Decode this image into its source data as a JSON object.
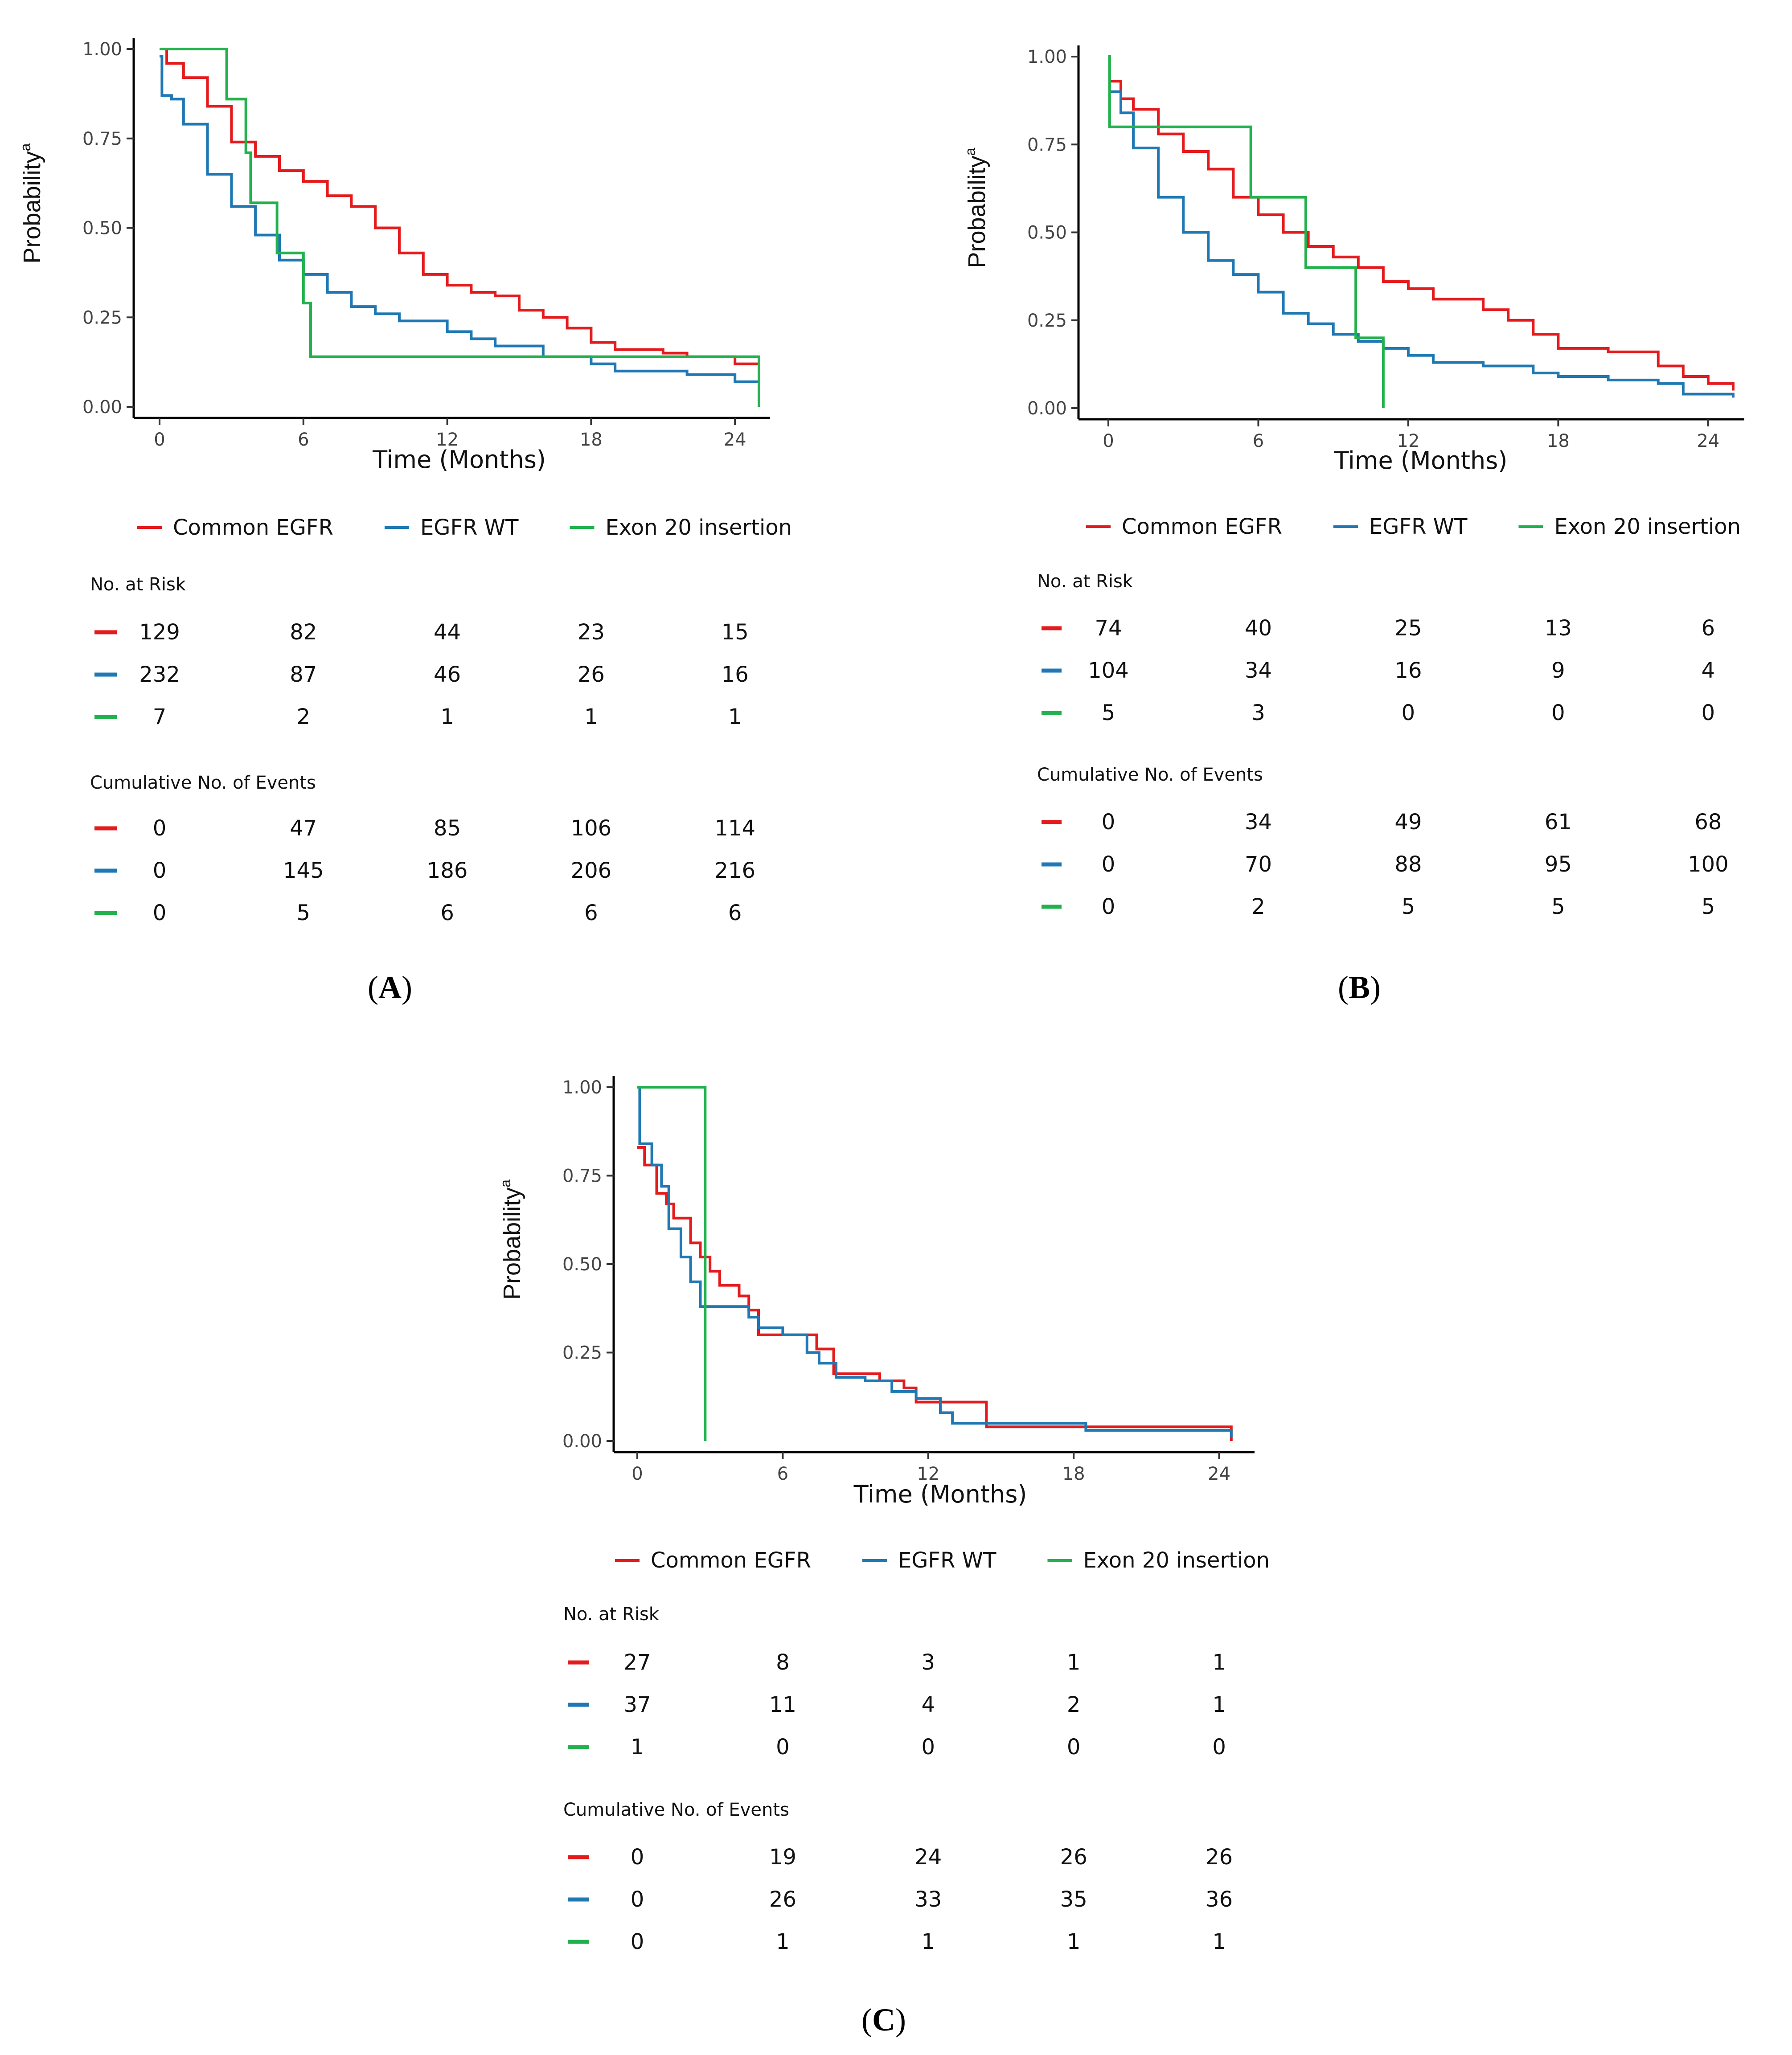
{
  "chart_data": [
    {
      "panel": "A",
      "panel_label": "A",
      "type": "line",
      "subtype": "kaplan-meier",
      "xlabel": "Time (Months)",
      "ylabel": "Probability",
      "ylabel_superscript": "a",
      "xlim": [
        0,
        25
      ],
      "ylim": [
        0,
        1
      ],
      "xticks": [
        0,
        6,
        12,
        18,
        24
      ],
      "yticks": [
        0,
        0.25,
        0.5,
        0.75,
        1
      ],
      "ytick_labels": [
        "0.00",
        "0.25",
        "0.50",
        "0.75",
        "1.00"
      ],
      "legend_position": "bottom",
      "series": [
        {
          "name": "Common EGFR",
          "color": "#e41a1c",
          "points": [
            [
              0,
              1
            ],
            [
              0.3,
              0.96
            ],
            [
              1,
              0.92
            ],
            [
              2,
              0.84
            ],
            [
              3,
              0.74
            ],
            [
              4,
              0.7
            ],
            [
              5,
              0.66
            ],
            [
              6,
              0.63
            ],
            [
              7,
              0.59
            ],
            [
              8,
              0.56
            ],
            [
              9,
              0.5
            ],
            [
              10,
              0.43
            ],
            [
              11,
              0.37
            ],
            [
              12,
              0.34
            ],
            [
              13,
              0.32
            ],
            [
              14,
              0.31
            ],
            [
              15,
              0.27
            ],
            [
              16,
              0.25
            ],
            [
              17,
              0.22
            ],
            [
              18,
              0.18
            ],
            [
              19,
              0.16
            ],
            [
              21,
              0.15
            ],
            [
              22,
              0.14
            ],
            [
              24,
              0.12
            ],
            [
              25,
              0.1
            ]
          ]
        },
        {
          "name": "EGFR WT",
          "color": "#1f78b4",
          "points": [
            [
              0,
              0.98
            ],
            [
              0.1,
              0.87
            ],
            [
              0.5,
              0.86
            ],
            [
              1,
              0.79
            ],
            [
              2,
              0.65
            ],
            [
              3,
              0.56
            ],
            [
              4,
              0.48
            ],
            [
              5,
              0.41
            ],
            [
              6,
              0.37
            ],
            [
              7,
              0.32
            ],
            [
              8,
              0.28
            ],
            [
              9,
              0.26
            ],
            [
              10,
              0.24
            ],
            [
              12,
              0.21
            ],
            [
              13,
              0.19
            ],
            [
              14,
              0.17
            ],
            [
              16,
              0.14
            ],
            [
              18,
              0.12
            ],
            [
              19,
              0.1
            ],
            [
              22,
              0.09
            ],
            [
              24,
              0.07
            ],
            [
              25,
              0.04
            ]
          ]
        },
        {
          "name": "Exon 20 insertion",
          "color": "#22b14c",
          "points": [
            [
              0,
              1
            ],
            [
              2.8,
              0.86
            ],
            [
              3.6,
              0.71
            ],
            [
              3.8,
              0.57
            ],
            [
              4.9,
              0.43
            ],
            [
              6,
              0.29
            ],
            [
              6.3,
              0.14
            ],
            [
              25,
              0.14
            ],
            [
              25,
              0
            ]
          ]
        }
      ],
      "risk_table": {
        "title": "No. at Risk",
        "times": [
          0,
          6,
          12,
          18,
          24
        ],
        "rows": [
          {
            "series": "Common EGFR",
            "values": [
              "129",
              "82",
              "44",
              "23",
              "15"
            ]
          },
          {
            "series": "EGFR WT",
            "values": [
              "232",
              "87",
              "46",
              "26",
              "16"
            ]
          },
          {
            "series": "Exon 20 insertion",
            "values": [
              "7",
              "2",
              "1",
              "1",
              "1"
            ]
          }
        ]
      },
      "events_table": {
        "title": "Cumulative No. of Events",
        "times": [
          0,
          6,
          12,
          18,
          24
        ],
        "rows": [
          {
            "series": "Common EGFR",
            "values": [
              "0",
              "47",
              "85",
              "106",
              "114"
            ]
          },
          {
            "series": "EGFR WT",
            "values": [
              "0",
              "145",
              "186",
              "206",
              "216"
            ]
          },
          {
            "series": "Exon 20 insertion",
            "values": [
              "0",
              "5",
              "6",
              "6",
              "6"
            ]
          }
        ]
      }
    },
    {
      "panel": "B",
      "panel_label": "B",
      "type": "line",
      "subtype": "kaplan-meier",
      "xlabel": "Time (Months)",
      "ylabel": "Probability",
      "ylabel_superscript": "a",
      "xlim": [
        0,
        25
      ],
      "ylim": [
        0,
        1
      ],
      "xticks": [
        0,
        6,
        12,
        18,
        24
      ],
      "yticks": [
        0,
        0.25,
        0.5,
        0.75,
        1
      ],
      "ytick_labels": [
        "0.00",
        "0.25",
        "0.50",
        "0.75",
        "1.00"
      ],
      "legend_position": "bottom",
      "series": [
        {
          "name": "Common EGFR",
          "color": "#e41a1c",
          "points": [
            [
              0,
              0.93
            ],
            [
              0.5,
              0.88
            ],
            [
              1,
              0.85
            ],
            [
              2,
              0.78
            ],
            [
              3,
              0.73
            ],
            [
              4,
              0.68
            ],
            [
              5,
              0.6
            ],
            [
              6,
              0.55
            ],
            [
              7,
              0.5
            ],
            [
              8,
              0.46
            ],
            [
              9,
              0.43
            ],
            [
              10,
              0.4
            ],
            [
              11,
              0.36
            ],
            [
              12,
              0.34
            ],
            [
              13,
              0.31
            ],
            [
              15,
              0.28
            ],
            [
              16,
              0.25
            ],
            [
              17,
              0.21
            ],
            [
              18,
              0.17
            ],
            [
              20,
              0.16
            ],
            [
              22,
              0.12
            ],
            [
              23,
              0.09
            ],
            [
              24,
              0.07
            ],
            [
              25,
              0.05
            ]
          ]
        },
        {
          "name": "EGFR WT",
          "color": "#1f78b4",
          "points": [
            [
              0,
              0.9
            ],
            [
              0.5,
              0.84
            ],
            [
              1,
              0.74
            ],
            [
              2,
              0.6
            ],
            [
              3,
              0.5
            ],
            [
              4,
              0.42
            ],
            [
              5,
              0.38
            ],
            [
              6,
              0.33
            ],
            [
              7,
              0.27
            ],
            [
              8,
              0.24
            ],
            [
              9,
              0.21
            ],
            [
              10,
              0.19
            ],
            [
              11,
              0.17
            ],
            [
              12,
              0.15
            ],
            [
              13,
              0.13
            ],
            [
              15,
              0.12
            ],
            [
              17,
              0.1
            ],
            [
              18,
              0.09
            ],
            [
              20,
              0.08
            ],
            [
              22,
              0.07
            ],
            [
              23,
              0.04
            ],
            [
              25,
              0.03
            ]
          ]
        },
        {
          "name": "Exon 20 insertion",
          "color": "#22b14c",
          "points": [
            [
              0,
              1
            ],
            [
              0.05,
              0.8
            ],
            [
              5.7,
              0.6
            ],
            [
              7.9,
              0.4
            ],
            [
              9.9,
              0.2
            ],
            [
              11,
              0
            ]
          ]
        }
      ],
      "risk_table": {
        "title": "No. at Risk",
        "times": [
          0,
          6,
          12,
          18,
          24
        ],
        "rows": [
          {
            "series": "Common EGFR",
            "values": [
              "74",
              "40",
              "25",
              "13",
              "6"
            ]
          },
          {
            "series": "EGFR WT",
            "values": [
              "104",
              "34",
              "16",
              "9",
              "4"
            ]
          },
          {
            "series": "Exon 20 insertion",
            "values": [
              "5",
              "3",
              "0",
              "0",
              "0"
            ]
          }
        ]
      },
      "events_table": {
        "title": "Cumulative No. of Events",
        "times": [
          0,
          6,
          12,
          18,
          24
        ],
        "rows": [
          {
            "series": "Common EGFR",
            "values": [
              "0",
              "34",
              "49",
              "61",
              "68"
            ]
          },
          {
            "series": "EGFR WT",
            "values": [
              "0",
              "70",
              "88",
              "95",
              "100"
            ]
          },
          {
            "series": "Exon 20 insertion",
            "values": [
              "0",
              "2",
              "5",
              "5",
              "5"
            ]
          }
        ]
      }
    },
    {
      "panel": "C",
      "panel_label": "C",
      "type": "line",
      "subtype": "kaplan-meier",
      "xlabel": "Time (Months)",
      "ylabel": "Probability",
      "ylabel_superscript": "a",
      "xlim": [
        0,
        25
      ],
      "ylim": [
        0,
        1
      ],
      "xticks": [
        0,
        6,
        12,
        18,
        24
      ],
      "yticks": [
        0,
        0.25,
        0.5,
        0.75,
        1
      ],
      "ytick_labels": [
        "0.00",
        "0.25",
        "0.50",
        "0.75",
        "1.00"
      ],
      "legend_position": "bottom",
      "series": [
        {
          "name": "Common EGFR",
          "color": "#e41a1c",
          "points": [
            [
              0,
              0.83
            ],
            [
              0.3,
              0.78
            ],
            [
              0.8,
              0.7
            ],
            [
              1.2,
              0.67
            ],
            [
              1.5,
              0.63
            ],
            [
              2.2,
              0.56
            ],
            [
              2.6,
              0.52
            ],
            [
              3,
              0.48
            ],
            [
              3.4,
              0.44
            ],
            [
              4.2,
              0.41
            ],
            [
              4.6,
              0.37
            ],
            [
              5,
              0.3
            ],
            [
              6,
              0.3
            ],
            [
              7.4,
              0.26
            ],
            [
              8.1,
              0.19
            ],
            [
              9.5,
              0.19
            ],
            [
              10,
              0.17
            ],
            [
              11,
              0.15
            ],
            [
              11.5,
              0.11
            ],
            [
              12.5,
              0.11
            ],
            [
              14.4,
              0.04
            ],
            [
              24.4,
              0.04
            ],
            [
              24.5,
              0
            ]
          ]
        },
        {
          "name": "EGFR WT",
          "color": "#1f78b4",
          "points": [
            [
              0,
              1
            ],
            [
              0.1,
              0.84
            ],
            [
              0.6,
              0.78
            ],
            [
              1,
              0.72
            ],
            [
              1.3,
              0.6
            ],
            [
              1.8,
              0.52
            ],
            [
              2.2,
              0.45
            ],
            [
              2.6,
              0.38
            ],
            [
              4.6,
              0.35
            ],
            [
              5,
              0.32
            ],
            [
              6,
              0.3
            ],
            [
              7,
              0.25
            ],
            [
              7.5,
              0.22
            ],
            [
              8.2,
              0.18
            ],
            [
              9.4,
              0.17
            ],
            [
              10.5,
              0.14
            ],
            [
              11.5,
              0.12
            ],
            [
              12.5,
              0.08
            ],
            [
              13,
              0.05
            ],
            [
              18.5,
              0.03
            ],
            [
              24.2,
              0.03
            ],
            [
              24.5,
              0.01
            ]
          ]
        },
        {
          "name": "Exon 20 insertion",
          "color": "#22b14c",
          "points": [
            [
              0,
              1
            ],
            [
              2.8,
              1
            ],
            [
              2.8,
              0
            ]
          ]
        }
      ],
      "risk_table": {
        "title": "No. at Risk",
        "times": [
          0,
          6,
          12,
          18,
          24
        ],
        "rows": [
          {
            "series": "Common EGFR",
            "values": [
              "27",
              "8",
              "3",
              "1",
              "1"
            ]
          },
          {
            "series": "EGFR WT",
            "values": [
              "37",
              "11",
              "4",
              "2",
              "1"
            ]
          },
          {
            "series": "Exon 20 insertion",
            "values": [
              "1",
              "0",
              "0",
              "0",
              "0"
            ]
          }
        ]
      },
      "events_table": {
        "title": "Cumulative No. of Events",
        "times": [
          0,
          6,
          12,
          18,
          24
        ],
        "rows": [
          {
            "series": "Common EGFR",
            "values": [
              "0",
              "19",
              "24",
              "26",
              "26"
            ]
          },
          {
            "series": "EGFR WT",
            "values": [
              "0",
              "26",
              "33",
              "35",
              "36"
            ]
          },
          {
            "series": "Exon 20 insertion",
            "values": [
              "0",
              "1",
              "1",
              "1",
              "1"
            ]
          }
        ]
      }
    }
  ]
}
